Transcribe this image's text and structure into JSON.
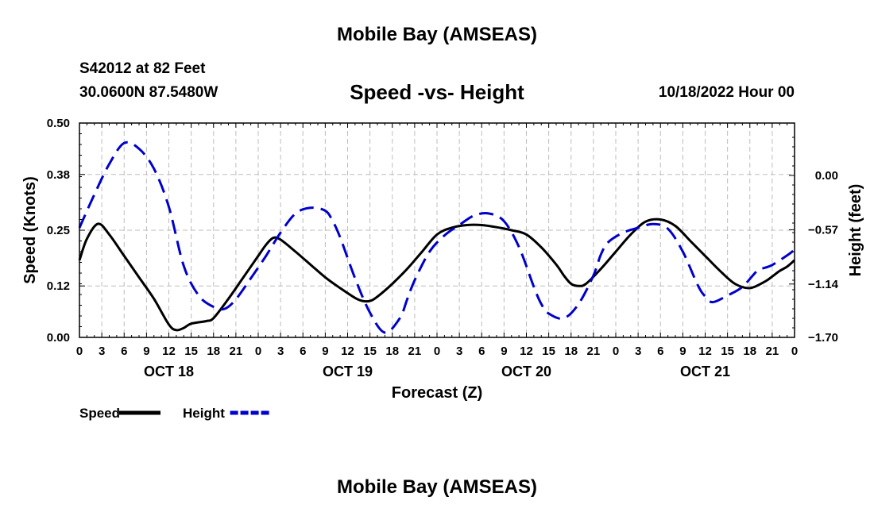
{
  "header": {
    "title": "Mobile Bay (AMSEAS)",
    "station": "S42012 at 82 Feet",
    "coords": "30.0600N  87.5480W",
    "subtitle": "Speed -vs- Height",
    "datetime": "10/18/2022 Hour 00"
  },
  "footer": {
    "title": "Mobile Bay (AMSEAS)"
  },
  "chart_data": {
    "type": "line",
    "title": "Speed -vs- Height",
    "xlabel": "Forecast (Z)",
    "ylabel": "Speed (Knots)",
    "y2label": "Height (feet)",
    "xlim": [
      0,
      96
    ],
    "ylim": [
      0,
      0.5
    ],
    "y2lim": [
      -1.7,
      0.55
    ],
    "x_ticks": [
      0,
      3,
      6,
      9,
      12,
      15,
      18,
      21,
      24,
      27,
      30,
      33,
      36,
      39,
      42,
      45,
      48,
      51,
      54,
      57,
      60,
      63,
      66,
      69,
      72,
      75,
      78,
      81,
      84,
      87,
      90,
      93,
      96
    ],
    "x_tick_labels": [
      "0",
      "3",
      "6",
      "9",
      "12",
      "15",
      "18",
      "21",
      "0",
      "3",
      "6",
      "9",
      "12",
      "15",
      "18",
      "21",
      "0",
      "3",
      "6",
      "9",
      "12",
      "15",
      "18",
      "21",
      "0",
      "3",
      "6",
      "9",
      "12",
      "15",
      "18",
      "21",
      "0"
    ],
    "day_labels": [
      {
        "x": 12,
        "label": "OCT 18"
      },
      {
        "x": 36,
        "label": "OCT 19"
      },
      {
        "x": 60,
        "label": "OCT 20"
      },
      {
        "x": 84,
        "label": "OCT 21"
      }
    ],
    "y_ticks": [
      0.0,
      0.12,
      0.25,
      0.38,
      0.5
    ],
    "y_tick_labels": [
      "0.00",
      "0.12",
      "0.25",
      "0.38",
      "0.50"
    ],
    "y2_ticks": [
      0.0,
      -0.57,
      -1.14,
      -1.7
    ],
    "y2_tick_labels": [
      "0.00",
      "−0.57",
      "−1.14",
      "−1.70"
    ],
    "grid": true,
    "legend": [
      {
        "name": "Speed",
        "color": "#000000",
        "style": "solid"
      },
      {
        "name": "Height",
        "color": "#0000cc",
        "style": "dashed"
      }
    ],
    "series": [
      {
        "name": "Speed",
        "axis": "left",
        "color": "#000000",
        "x": [
          0,
          1,
          2.5,
          4,
          6,
          8,
          10,
          12,
          13,
          14,
          15,
          17,
          18,
          20,
          22,
          24,
          25,
          26,
          27,
          29,
          31,
          33,
          35,
          37,
          38,
          39,
          40,
          42,
          44,
          46,
          48,
          50,
          52,
          54,
          56,
          58,
          60,
          62,
          64,
          65,
          66,
          67,
          68,
          70,
          72,
          74,
          76,
          78,
          80,
          82,
          84,
          86,
          88,
          90,
          92,
          93,
          94,
          95,
          96
        ],
        "values": [
          0.18,
          0.23,
          0.265,
          0.24,
          0.19,
          0.14,
          0.09,
          0.03,
          0.017,
          0.022,
          0.032,
          0.038,
          0.045,
          0.09,
          0.14,
          0.19,
          0.215,
          0.232,
          0.228,
          0.2,
          0.17,
          0.14,
          0.115,
          0.092,
          0.085,
          0.085,
          0.095,
          0.125,
          0.16,
          0.2,
          0.24,
          0.256,
          0.262,
          0.262,
          0.257,
          0.25,
          0.24,
          0.21,
          0.17,
          0.145,
          0.125,
          0.12,
          0.125,
          0.16,
          0.2,
          0.24,
          0.27,
          0.275,
          0.26,
          0.225,
          0.19,
          0.155,
          0.125,
          0.115,
          0.13,
          0.142,
          0.155,
          0.165,
          0.18
        ]
      },
      {
        "name": "Height",
        "axis": "right",
        "color": "#0000cc",
        "x": [
          0,
          2,
          4,
          6,
          8,
          10,
          12,
          14,
          16,
          18,
          19.5,
          21,
          23,
          25,
          27,
          29,
          31,
          33,
          34,
          35,
          37,
          39,
          41,
          43,
          44,
          45,
          47,
          49,
          51,
          53,
          55,
          57,
          59,
          61,
          62,
          63,
          65,
          67,
          69,
          70,
          71,
          73,
          75,
          77,
          79,
          81,
          83,
          84,
          85,
          87,
          89,
          91,
          92,
          93,
          95,
          96
        ],
        "values": [
          -0.55,
          -0.2,
          0.12,
          0.34,
          0.28,
          0.07,
          -0.33,
          -0.95,
          -1.26,
          -1.38,
          -1.4,
          -1.3,
          -1.08,
          -0.85,
          -0.6,
          -0.4,
          -0.34,
          -0.37,
          -0.48,
          -0.65,
          -1.08,
          -1.44,
          -1.65,
          -1.5,
          -1.3,
          -1.1,
          -0.8,
          -0.63,
          -0.52,
          -0.42,
          -0.4,
          -0.48,
          -0.75,
          -1.17,
          -1.35,
          -1.45,
          -1.5,
          -1.35,
          -1.05,
          -0.83,
          -0.7,
          -0.6,
          -0.55,
          -0.51,
          -0.56,
          -0.8,
          -1.15,
          -1.27,
          -1.33,
          -1.26,
          -1.17,
          -1.0,
          -0.97,
          -0.94,
          -0.84,
          -0.78
        ]
      }
    ]
  }
}
